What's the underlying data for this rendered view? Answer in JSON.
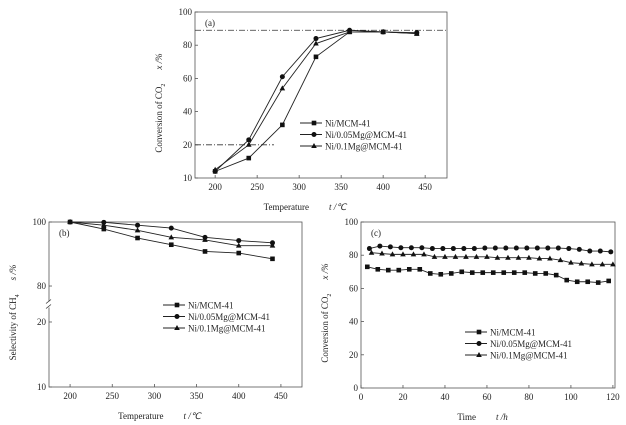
{
  "chart_data": [
    {
      "type": "line",
      "panel_label": "(a)",
      "xlabel": "Temperature",
      "xunit": "t /℃",
      "ylabel": "Conversion of CO",
      "ylabel_sub": "2",
      "yunit": "x /%",
      "xlim": [
        176,
        476
      ],
      "xticks": [
        200,
        250,
        300,
        350,
        400,
        450
      ],
      "yticks": [
        100,
        80,
        60,
        40,
        20,
        10
      ],
      "y_scale": "non-uniform ticks (10–20 spaced like 20–40)",
      "reference_lines": [
        {
          "y": 89,
          "x_range": [
            176,
            476
          ],
          "style": "dash-dot"
        },
        {
          "y": 20,
          "x_range": [
            176,
            270
          ],
          "style": "dash-dot"
        }
      ],
      "legend_placement": "center-right",
      "series": [
        {
          "name": "Ni/MCM-41",
          "marker": "square",
          "x": [
            200,
            240,
            280,
            320,
            360,
            400,
            440
          ],
          "y": [
            12,
            16,
            32,
            73,
            88,
            88,
            87
          ]
        },
        {
          "name": "Ni/0.05Mg@MCM-41",
          "marker": "circle",
          "x": [
            200,
            240,
            280,
            320,
            360,
            400,
            440
          ],
          "y": [
            12,
            23,
            61,
            84,
            89,
            88,
            87.5
          ]
        },
        {
          "name": "Ni/0.1Mg@MCM-41",
          "marker": "triangle",
          "x": [
            200,
            240,
            280,
            320,
            360,
            400,
            440
          ],
          "y": [
            12.5,
            20,
            54,
            81,
            88,
            88,
            87
          ]
        }
      ]
    },
    {
      "type": "line",
      "panel_label": "(b)",
      "xlabel": "Temperature",
      "xunit": "t /℃",
      "ylabel": "Selectivity of CH",
      "ylabel_sub": "4",
      "yunit": "s /%",
      "xlim": [
        175,
        475
      ],
      "xticks": [
        200,
        250,
        300,
        350,
        400,
        450
      ],
      "yticks": [
        100,
        80,
        20,
        10
      ],
      "y_scale": "broken axis between 20 and 80",
      "legend_placement": "center",
      "series": [
        {
          "name": "Ni/MCM-41",
          "marker": "square",
          "x": [
            200,
            240,
            280,
            320,
            360,
            400,
            440
          ],
          "y": [
            100,
            97.8,
            95,
            92.9,
            90.8,
            90.3,
            88.5
          ]
        },
        {
          "name": "Ni/0.05Mg@MCM-41",
          "marker": "circle",
          "x": [
            200,
            240,
            280,
            320,
            360,
            400,
            440
          ],
          "y": [
            100,
            99.9,
            99,
            98.1,
            95.2,
            94.2,
            93.5
          ]
        },
        {
          "name": "Ni/0.1Mg@MCM-41",
          "marker": "triangle",
          "x": [
            200,
            240,
            280,
            320,
            360,
            400,
            440
          ],
          "y": [
            100,
            99,
            97.4,
            95.2,
            94.4,
            92.6,
            92.6
          ]
        }
      ]
    },
    {
      "type": "line",
      "panel_label": "(c)",
      "xlabel": "Time",
      "xunit": "t /h",
      "ylabel": "Conversion of CO",
      "ylabel_sub": "2",
      "yunit": "x /%",
      "xlim": [
        0,
        121
      ],
      "xticks": [
        0,
        20,
        40,
        60,
        80,
        100,
        120
      ],
      "yticks": [
        100,
        80,
        60,
        40,
        20,
        0
      ],
      "legend_placement": "bottom-center",
      "series": [
        {
          "name": "Ni/MCM-41",
          "marker": "square",
          "x": [
            3,
            8,
            13,
            18,
            23,
            28,
            33,
            38,
            43,
            48,
            53,
            58,
            63,
            68,
            73,
            78,
            83,
            88,
            93,
            98,
            103,
            108,
            113,
            118
          ],
          "y": [
            73,
            71.5,
            71,
            71,
            71.5,
            71.5,
            69,
            68.5,
            69,
            70,
            69.5,
            69.5,
            69.5,
            69.5,
            69.5,
            69.5,
            69,
            69,
            68,
            65,
            64,
            64,
            63.5,
            64.5
          ]
        },
        {
          "name": "Ni/0.05Mg@MCM-41",
          "marker": "circle",
          "x": [
            4,
            9,
            14,
            19,
            24,
            29,
            34,
            39,
            44,
            49,
            54,
            59,
            64,
            69,
            74,
            79,
            84,
            89,
            94,
            99,
            104,
            109,
            114,
            119
          ],
          "y": [
            84,
            85.5,
            85,
            84.5,
            84.5,
            84.5,
            84,
            84,
            84,
            84,
            84,
            84.3,
            84.3,
            84.3,
            84.3,
            84.3,
            84.3,
            84.3,
            84.3,
            84,
            83.5,
            82.5,
            82.5,
            82
          ]
        },
        {
          "name": "Ni/0.1Mg@MCM-41",
          "marker": "triangle",
          "x": [
            5,
            10,
            15,
            20,
            25,
            30,
            35,
            40,
            45,
            50,
            55,
            60,
            65,
            70,
            75,
            80,
            85,
            90,
            95,
            100,
            105,
            110,
            115,
            120
          ],
          "y": [
            81.5,
            81,
            80.5,
            80.5,
            80.5,
            80.5,
            79,
            79,
            79,
            79,
            79,
            79,
            78.5,
            78.5,
            78.5,
            78.5,
            78,
            78,
            77,
            75.5,
            75,
            74.5,
            74.5,
            74.5
          ]
        }
      ]
    }
  ]
}
